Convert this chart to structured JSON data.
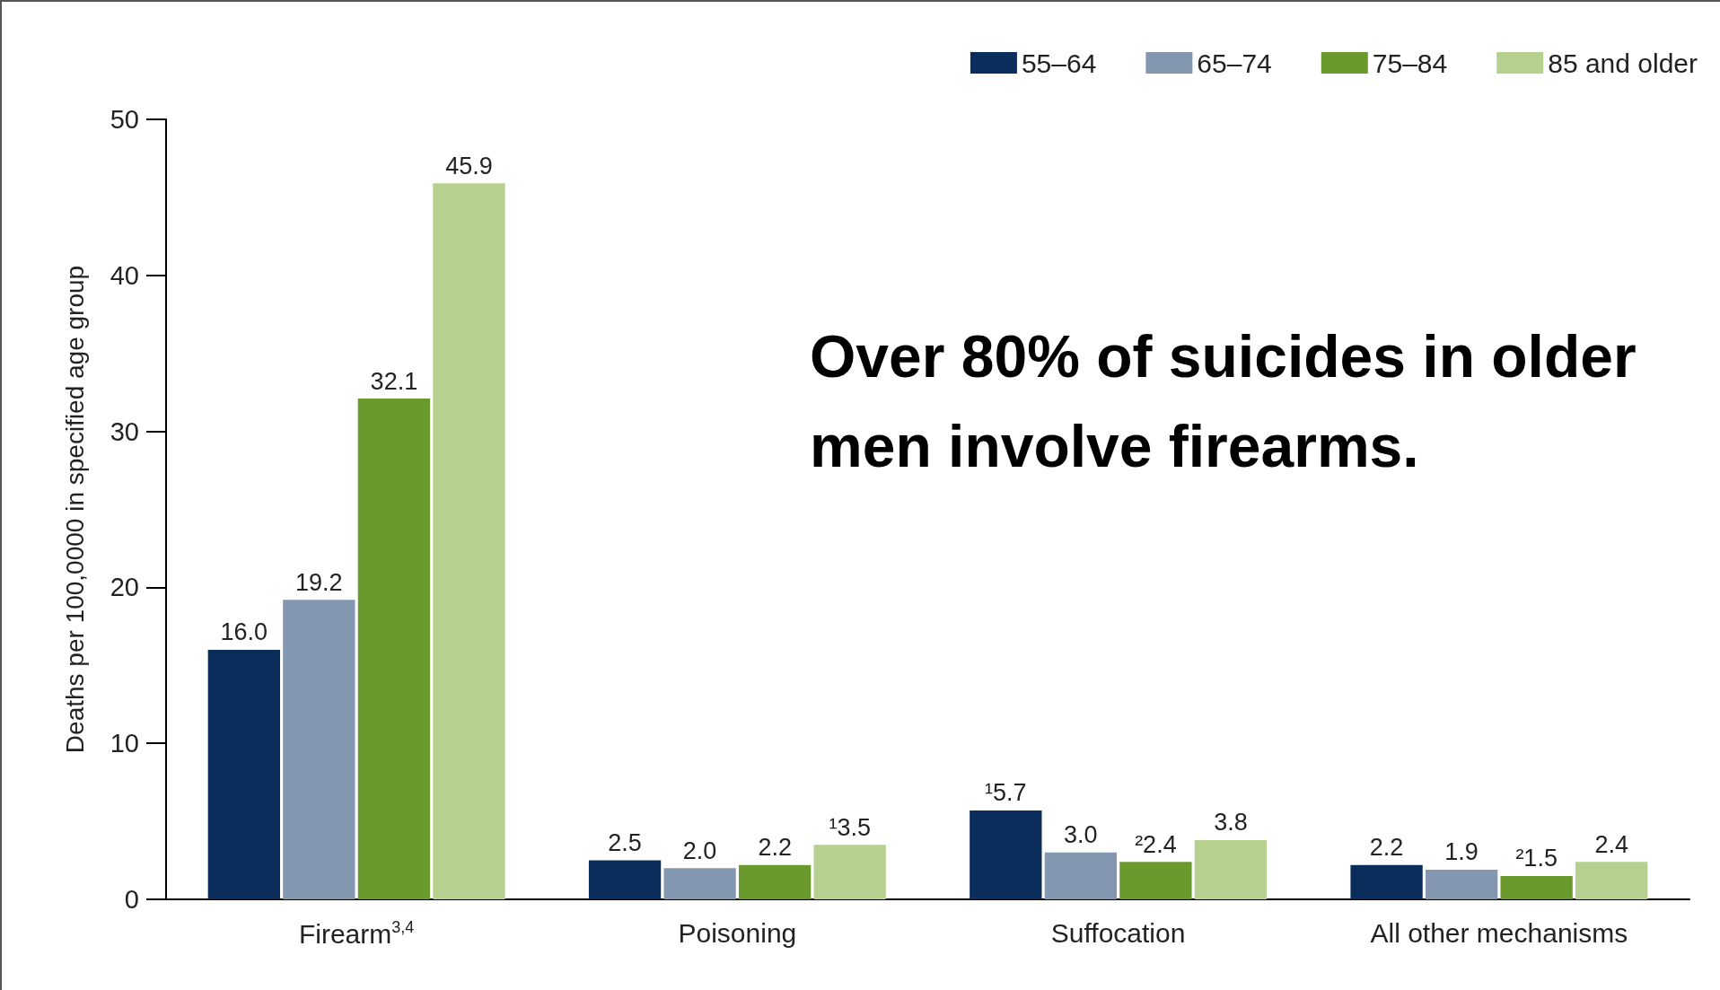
{
  "chart_data": {
    "type": "bar",
    "ylabel": "Deaths per 100,0000 in specified age group",
    "categories": [
      "Firearm$^{3,4}$",
      "Poisoning",
      "Suffocation",
      "All other mechanisms"
    ],
    "series": [
      {
        "name": "55–64",
        "color": "#0b2d5c",
        "values": [
          16.0,
          2.5,
          5.7,
          2.2
        ],
        "value_labels": [
          "16.0",
          "2.5",
          "¹5.7",
          "2.2"
        ]
      },
      {
        "name": "65–74",
        "color": "#8497b0",
        "values": [
          19.2,
          2.0,
          3.0,
          1.9
        ],
        "value_labels": [
          "19.2",
          "2.0",
          "3.0",
          "1.9"
        ]
      },
      {
        "name": "75–84",
        "color": "#6a9a2e",
        "values": [
          32.1,
          2.2,
          2.4,
          1.5
        ],
        "value_labels": [
          "32.1",
          "2.2",
          "²2.4",
          "²1.5"
        ]
      },
      {
        "name": "85 and older",
        "color": "#b5d08f",
        "values": [
          45.9,
          3.5,
          3.8,
          2.4
        ],
        "value_labels": [
          "45.9",
          "¹3.5",
          "3.8",
          "2.4"
        ]
      }
    ],
    "ylim": [
      0,
      50
    ],
    "yticks": [
      0,
      10,
      20,
      30,
      40,
      50
    ],
    "annotations": [
      "Over 80% of suicides in older men involve firearms."
    ],
    "grid": false,
    "legend": "top right"
  }
}
